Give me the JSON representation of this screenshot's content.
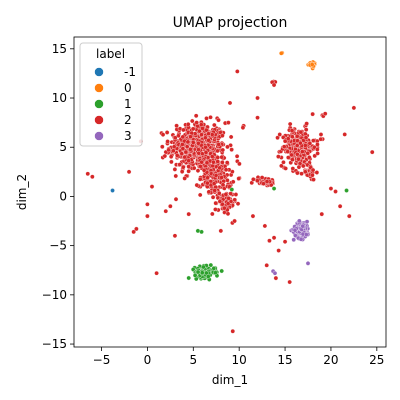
{
  "chart_data": {
    "type": "scatter",
    "title": "UMAP projection",
    "xlabel": "dim_1",
    "ylabel": "dim_2",
    "xlim": [
      -8,
      26
    ],
    "ylim": [
      -15.3,
      16.2
    ],
    "xticks": [
      -5,
      0,
      5,
      10,
      15,
      20,
      25
    ],
    "yticks": [
      -15,
      -10,
      -5,
      0,
      5,
      10,
      15
    ],
    "grid": false,
    "legend": {
      "title": "label",
      "placement": "top-left",
      "entries": [
        {
          "label": "-1",
          "color": "#1f77b4"
        },
        {
          "label": "0",
          "color": "#ff7f0e"
        },
        {
          "label": "1",
          "color": "#2ca02c"
        },
        {
          "label": "2",
          "color": "#d62728"
        },
        {
          "label": "3",
          "color": "#9467bd"
        }
      ]
    },
    "clusters": [
      {
        "label": "2",
        "center": [
          5.5,
          5.0
        ],
        "spread": [
          2.2,
          1.8
        ],
        "count": 500
      },
      {
        "label": "2",
        "center": [
          7.5,
          2.0
        ],
        "spread": [
          1.2,
          1.4
        ],
        "count": 160
      },
      {
        "label": "2",
        "center": [
          8.5,
          -0.8
        ],
        "spread": [
          0.8,
          0.9
        ],
        "count": 60
      },
      {
        "label": "2",
        "center": [
          16.5,
          5.0
        ],
        "spread": [
          1.3,
          1.4
        ],
        "count": 240
      },
      {
        "label": "2",
        "center": [
          17.5,
          2.5
        ],
        "spread": [
          0.6,
          0.6
        ],
        "count": 40
      },
      {
        "label": "2",
        "center": [
          12.8,
          1.5
        ],
        "spread": [
          0.9,
          0.3
        ],
        "count": 45
      },
      {
        "label": "2",
        "center": [
          13.8,
          11.5
        ],
        "spread": [
          0.2,
          0.2
        ],
        "count": 4
      },
      {
        "label": "2",
        "center": [
          10.5,
          7.0
        ],
        "spread": [
          0.2,
          0.2
        ],
        "count": 3
      },
      {
        "label": "2",
        "center": [
          19.3,
          8.3
        ],
        "spread": [
          0.2,
          0.2
        ],
        "count": 3
      },
      {
        "label": "2",
        "center": [
          19.0,
          6.0
        ],
        "spread": [
          0.2,
          0.2
        ],
        "count": 3
      },
      {
        "label": "3",
        "center": [
          16.8,
          -3.4
        ],
        "spread": [
          0.6,
          0.6
        ],
        "count": 160
      },
      {
        "label": "1",
        "center": [
          6.3,
          -7.7
        ],
        "spread": [
          0.8,
          0.4
        ],
        "count": 150
      },
      {
        "label": "0",
        "center": [
          18.0,
          13.3
        ],
        "spread": [
          0.3,
          0.2
        ],
        "count": 25
      },
      {
        "label": "0",
        "center": [
          14.6,
          14.6
        ],
        "spread": [
          0.1,
          0.1
        ],
        "count": 2
      }
    ],
    "points": [
      {
        "x": -6.5,
        "y": 2.3,
        "label": "2"
      },
      {
        "x": -6.0,
        "y": 2.0,
        "label": "2"
      },
      {
        "x": -3.8,
        "y": 0.6,
        "label": "-1"
      },
      {
        "x": -2.0,
        "y": 2.5,
        "label": "2"
      },
      {
        "x": -1.5,
        "y": -3.6,
        "label": "2"
      },
      {
        "x": -1.2,
        "y": -3.3,
        "label": "2"
      },
      {
        "x": 0.5,
        "y": 1.0,
        "label": "2"
      },
      {
        "x": 1.0,
        "y": -7.8,
        "label": "2"
      },
      {
        "x": 0.0,
        "y": -0.8,
        "label": "2"
      },
      {
        "x": 2.0,
        "y": -1.5,
        "label": "2"
      },
      {
        "x": 2.5,
        "y": -1.0,
        "label": "2"
      },
      {
        "x": 3.0,
        "y": -4.0,
        "label": "2"
      },
      {
        "x": 4.5,
        "y": -1.8,
        "label": "2"
      },
      {
        "x": 0.0,
        "y": -2.0,
        "label": "2"
      },
      {
        "x": 9.3,
        "y": -13.7,
        "label": "2"
      },
      {
        "x": 9.8,
        "y": 12.7,
        "label": "2"
      },
      {
        "x": 9.0,
        "y": 9.5,
        "label": "2"
      },
      {
        "x": 12.0,
        "y": 10.0,
        "label": "2"
      },
      {
        "x": 12.0,
        "y": 8.0,
        "label": "2"
      },
      {
        "x": 11.5,
        "y": -2.0,
        "label": "2"
      },
      {
        "x": 12.8,
        "y": -3.0,
        "label": "2"
      },
      {
        "x": 13.3,
        "y": -4.5,
        "label": "2"
      },
      {
        "x": 13.8,
        "y": -4.2,
        "label": "2"
      },
      {
        "x": 14.3,
        "y": -5.5,
        "label": "2"
      },
      {
        "x": 15.0,
        "y": -4.6,
        "label": "2"
      },
      {
        "x": 14.0,
        "y": -8.3,
        "label": "2"
      },
      {
        "x": 15.5,
        "y": -8.7,
        "label": "2"
      },
      {
        "x": 13.0,
        "y": -7.0,
        "label": "2"
      },
      {
        "x": 9.5,
        "y": -2.5,
        "label": "2"
      },
      {
        "x": 8.0,
        "y": -3.5,
        "label": "2"
      },
      {
        "x": 20.5,
        "y": 0.5,
        "label": "2"
      },
      {
        "x": 20.0,
        "y": 0.8,
        "label": "2"
      },
      {
        "x": 21.0,
        "y": -1.0,
        "label": "2"
      },
      {
        "x": 22.0,
        "y": -2.0,
        "label": "2"
      },
      {
        "x": 24.5,
        "y": 4.5,
        "label": "2"
      },
      {
        "x": 19.0,
        "y": -1.8,
        "label": "2"
      },
      {
        "x": 22.5,
        "y": 9.0,
        "label": "2"
      },
      {
        "x": 21.5,
        "y": 6.3,
        "label": "2"
      },
      {
        "x": 17.5,
        "y": -6.8,
        "label": "3"
      },
      {
        "x": 13.7,
        "y": -7.6,
        "label": "3"
      },
      {
        "x": 13.9,
        "y": -7.8,
        "label": "3"
      },
      {
        "x": 21.7,
        "y": 0.6,
        "label": "1"
      },
      {
        "x": 13.8,
        "y": 0.8,
        "label": "1"
      },
      {
        "x": 5.9,
        "y": -3.6,
        "label": "1"
      },
      {
        "x": 9.2,
        "y": 0.7,
        "label": "1"
      },
      {
        "x": 5.5,
        "y": -3.5,
        "label": "1"
      }
    ]
  }
}
